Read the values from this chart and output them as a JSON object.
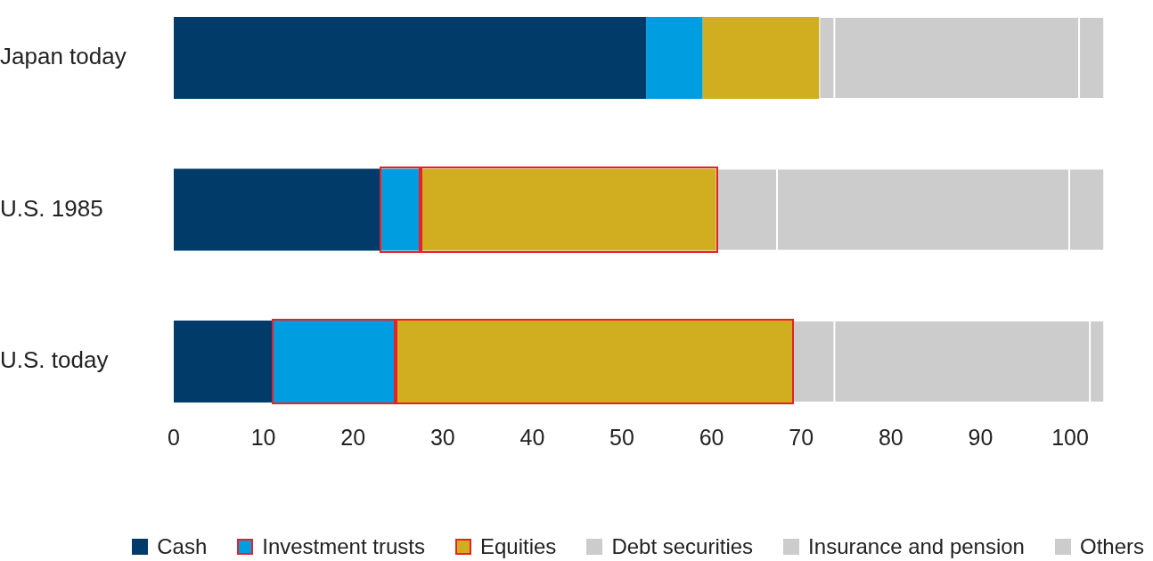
{
  "chart_data": {
    "type": "bar",
    "orientation": "horizontal",
    "stacked": true,
    "categories": [
      "Japan today",
      "U.S. 1985",
      "U.S. today"
    ],
    "series": [
      {
        "name": "Cash",
        "color": "#003b69",
        "values": [
          52.7,
          23.2,
          11.1
        ]
      },
      {
        "name": "Investment trusts",
        "color": "#009de0",
        "values": [
          6.3,
          4.3,
          13.7
        ]
      },
      {
        "name": "Equities",
        "color": "#d1ae20",
        "values": [
          13.0,
          33.0,
          44.2
        ]
      },
      {
        "name": "Debt securities",
        "color": "#cccccc",
        "values": [
          1.7,
          6.8,
          4.7
        ]
      },
      {
        "name": "Insurance and pension",
        "color": "#cccccc",
        "values": [
          27.3,
          32.6,
          28.5
        ]
      },
      {
        "name": "Others",
        "color": "#cccccc",
        "values": [
          2.8,
          3.9,
          1.6
        ]
      }
    ],
    "xlim": [
      0,
      104
    ],
    "xticks": [
      0,
      10,
      20,
      30,
      40,
      50,
      60,
      70,
      80,
      90,
      100
    ],
    "grid": false,
    "legend": "bottom"
  }
}
